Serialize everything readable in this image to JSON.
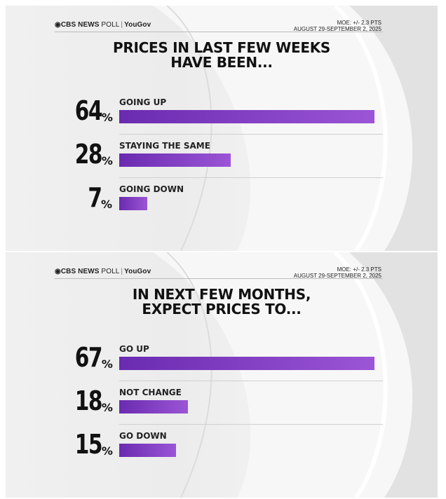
{
  "colors": {
    "bar": "#7b3fc4",
    "text": "#111111"
  },
  "header": {
    "brand_eye": "◉",
    "brand": "CBS NEWS",
    "poll": "POLL",
    "partner": "YouGov",
    "moe": "MOE: +/- 2.3 PTS",
    "dates": "AUGUST 29-SEPTEMBER 2, 2025"
  },
  "chart_data": [
    {
      "type": "bar",
      "orientation": "horizontal",
      "title_lines": [
        "PRICES IN LAST FEW WEEKS",
        "HAVE BEEN..."
      ],
      "categories": [
        "GOING UP",
        "STAYING THE SAME",
        "GOING DOWN"
      ],
      "values": [
        64,
        28,
        7
      ],
      "value_labels": [
        "64",
        "28",
        "7"
      ],
      "unit": "%",
      "xlim": [
        0,
        64
      ]
    },
    {
      "type": "bar",
      "orientation": "horizontal",
      "title_lines": [
        "IN NEXT FEW MONTHS,",
        "EXPECT PRICES TO..."
      ],
      "categories": [
        "GO UP",
        "NOT CHANGE",
        "GO DOWN"
      ],
      "values": [
        67,
        18,
        15
      ],
      "value_labels": [
        "67",
        "18",
        "15"
      ],
      "unit": "%",
      "xlim": [
        0,
        67
      ]
    }
  ]
}
